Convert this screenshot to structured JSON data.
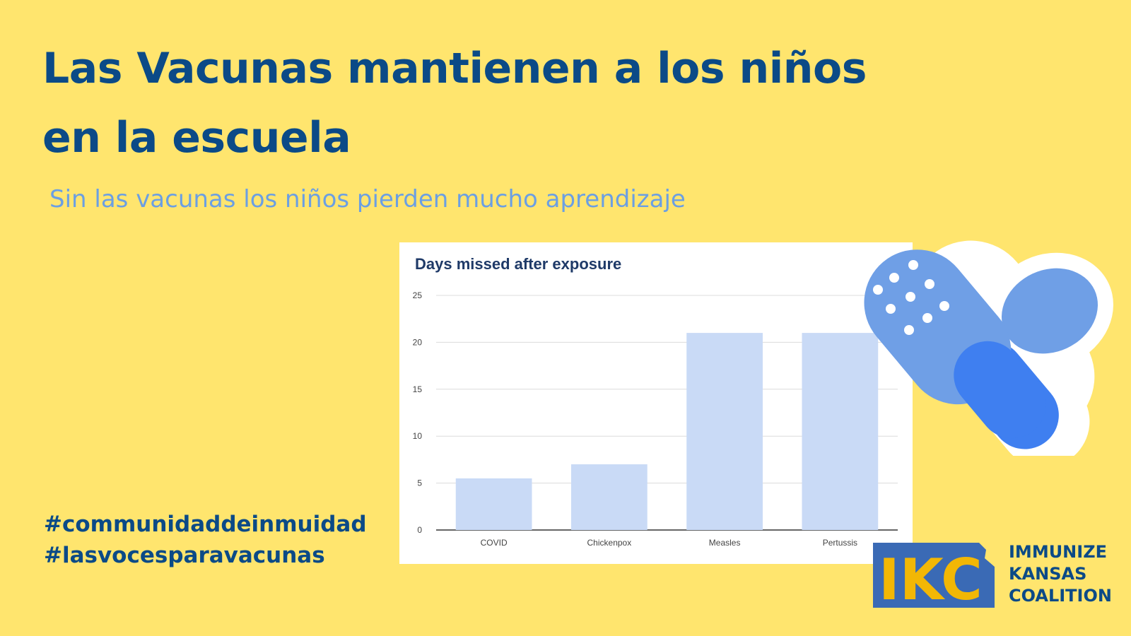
{
  "title_line1": "Las Vacunas mantienen a los niños",
  "title_line2": "en la escuela",
  "subtitle": "Sin las vacunas los niños pierden mucho aprendizaje",
  "hashtags": [
    "#communidaddeinmuidad",
    "#lasvocesparavacunas"
  ],
  "logo": {
    "mark": "IKC",
    "line1": "IMMUNIZE",
    "line2": "KANSAS",
    "line3": "COALITION"
  },
  "colors": {
    "background": "#ffe56e",
    "title": "#0b4a87",
    "subtitle": "#6b9fe3",
    "bar": "#c9daf6",
    "logo_blue": "#3a6ab5",
    "logo_gold": "#f2b705"
  },
  "chart_data": {
    "type": "bar",
    "title": "Days missed after exposure",
    "xlabel": "",
    "ylabel": "",
    "categories": [
      "COVID",
      "Chickenpox",
      "Measles",
      "Pertussis"
    ],
    "values": [
      5.5,
      7,
      21,
      21
    ],
    "ylim": [
      0,
      25
    ],
    "yticks": [
      0,
      5,
      10,
      15,
      20,
      25
    ],
    "grid": true,
    "legend": "none"
  }
}
